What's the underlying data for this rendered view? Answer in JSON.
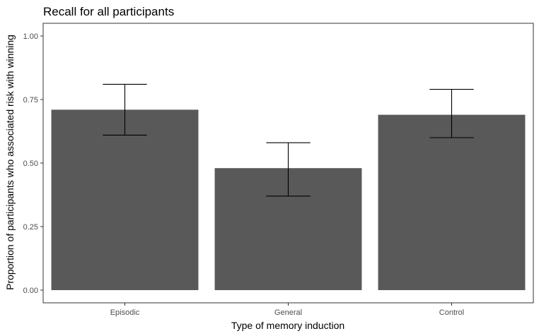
{
  "chart_data": {
    "type": "bar",
    "title": "Recall for all participants",
    "xlabel": "Type of memory induction",
    "ylabel": "Proportion of participants who associated risk with winning",
    "categories": [
      "Episodic",
      "General",
      "Control"
    ],
    "values": [
      0.71,
      0.48,
      0.69
    ],
    "error_bars": [
      {
        "low": 0.61,
        "high": 0.81
      },
      {
        "low": 0.37,
        "high": 0.58
      },
      {
        "low": 0.6,
        "high": 0.79
      }
    ],
    "ylim": [
      0,
      1
    ],
    "yticks": [
      0,
      0.25,
      0.5,
      0.75,
      1
    ],
    "ytick_labels": [
      "0.00",
      "0.25",
      "0.50",
      "0.75",
      "1.00"
    ],
    "grid": false,
    "bar_color": "#595959",
    "error_bar_color": "#000000",
    "panel_border_color": "#333333"
  }
}
